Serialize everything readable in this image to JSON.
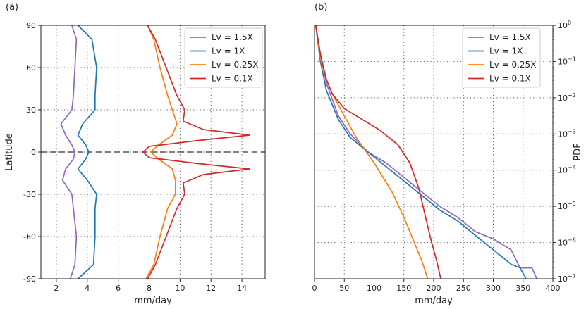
{
  "chart_data": [
    {
      "panel": "(a)",
      "type": "line",
      "xlabel": "mm/day",
      "ylabel": "Latitude",
      "xlim": [
        1,
        15.5
      ],
      "ylim": [
        -90,
        90
      ],
      "xticks": [
        2,
        4,
        6,
        8,
        10,
        12,
        14
      ],
      "yticks": [
        -90,
        -60,
        -30,
        0,
        30,
        60,
        90
      ],
      "legend": {
        "position": "top-right"
      },
      "reference_line": {
        "y": 0,
        "style": "dashed",
        "color": "#555555"
      },
      "series": [
        {
          "name": "Lv = 1.5X",
          "color": "#9467bd",
          "lat": [
            -90,
            -80,
            -60,
            -40,
            -30,
            -20,
            -12,
            -5,
            0,
            5,
            12,
            20,
            30,
            40,
            60,
            80,
            90
          ],
          "x": [
            2.9,
            3.2,
            3.3,
            3.1,
            3.0,
            2.4,
            2.6,
            3.1,
            3.2,
            3.0,
            2.6,
            2.3,
            3.0,
            3.1,
            3.2,
            3.3,
            3.0
          ]
        },
        {
          "name": "Lv = 1X",
          "color": "#1f77b4",
          "lat": [
            -90,
            -80,
            -60,
            -40,
            -30,
            -20,
            -12,
            -5,
            0,
            5,
            12,
            20,
            30,
            40,
            60,
            80,
            90
          ],
          "x": [
            3.4,
            4.4,
            4.5,
            4.5,
            4.6,
            4.0,
            3.4,
            3.9,
            4.1,
            3.9,
            3.4,
            3.7,
            4.5,
            4.5,
            4.6,
            4.3,
            3.4
          ]
        },
        {
          "name": "Lv = 0.25X",
          "color": "#ff7f0e",
          "lat": [
            -90,
            -80,
            -60,
            -40,
            -30,
            -20,
            -12,
            -5,
            0,
            5,
            12,
            20,
            30,
            40,
            60,
            80,
            90
          ],
          "x": [
            7.8,
            8.3,
            8.7,
            9.2,
            9.7,
            9.7,
            9.5,
            8.6,
            8.1,
            8.6,
            9.5,
            9.8,
            9.5,
            9.2,
            8.7,
            8.3,
            7.9
          ]
        },
        {
          "name": "Lv = 0.1X",
          "color": "#d62728",
          "lat": [
            -90,
            -80,
            -60,
            -40,
            -30,
            -22,
            -16,
            -12,
            -8,
            -4,
            0,
            4,
            8,
            12,
            16,
            22,
            30,
            40,
            60,
            80,
            90
          ],
          "x": [
            7.9,
            8.4,
            9.1,
            9.8,
            10.3,
            10.2,
            11.5,
            14.5,
            11.0,
            8.0,
            7.6,
            8.0,
            11.0,
            14.5,
            11.5,
            10.2,
            10.3,
            9.8,
            9.1,
            8.4,
            7.9
          ]
        }
      ]
    },
    {
      "panel": "(b)",
      "type": "line",
      "xlabel": "mm/day",
      "ylabel": "PDF",
      "yscale": "log",
      "xlim": [
        0,
        400
      ],
      "ylim": [
        1e-07,
        1
      ],
      "xticks": [
        0,
        50,
        100,
        150,
        200,
        250,
        300,
        350,
        400
      ],
      "yticks_exponents": [
        -7,
        -6,
        -5,
        -4,
        -3,
        -2,
        -1,
        0
      ],
      "ytick_base": "10",
      "legend": {
        "position": "top-right"
      },
      "series": [
        {
          "name": "Lv = 1.5X",
          "color": "#9467bd",
          "x": [
            2,
            10,
            20,
            40,
            60,
            90,
            120,
            150,
            180,
            210,
            240,
            270,
            300,
            330,
            345,
            365,
            373
          ],
          "log10": [
            0,
            -0.8,
            -1.6,
            -2.5,
            -3.0,
            -3.5,
            -3.8,
            -4.2,
            -4.6,
            -5.0,
            -5.3,
            -5.7,
            -5.9,
            -6.2,
            -6.7,
            -6.7,
            -7.0
          ]
        },
        {
          "name": "Lv = 1X",
          "color": "#1f77b4",
          "x": [
            2,
            10,
            20,
            40,
            60,
            90,
            120,
            150,
            180,
            210,
            240,
            270,
            300,
            330,
            345,
            355
          ],
          "log10": [
            0,
            -1.0,
            -1.8,
            -2.6,
            -3.1,
            -3.5,
            -3.9,
            -4.3,
            -4.7,
            -5.1,
            -5.4,
            -5.8,
            -6.2,
            -6.6,
            -6.7,
            -7.0
          ]
        },
        {
          "name": "Lv = 0.25X",
          "color": "#ff7f0e",
          "x": [
            2,
            10,
            20,
            30,
            50,
            70,
            100,
            130,
            150,
            165,
            180,
            190
          ],
          "log10": [
            0,
            -0.9,
            -1.5,
            -1.9,
            -2.5,
            -3.1,
            -3.8,
            -4.6,
            -5.3,
            -5.9,
            -6.5,
            -7.0
          ]
        },
        {
          "name": "Lv = 0.1X",
          "color": "#d62728",
          "x": [
            2,
            10,
            20,
            30,
            50,
            80,
            110,
            140,
            160,
            175,
            185,
            195,
            205,
            212
          ],
          "log10": [
            0,
            -0.8,
            -1.5,
            -1.9,
            -2.3,
            -2.6,
            -2.9,
            -3.3,
            -3.8,
            -4.5,
            -5.2,
            -5.9,
            -6.5,
            -7.0
          ]
        }
      ]
    }
  ]
}
